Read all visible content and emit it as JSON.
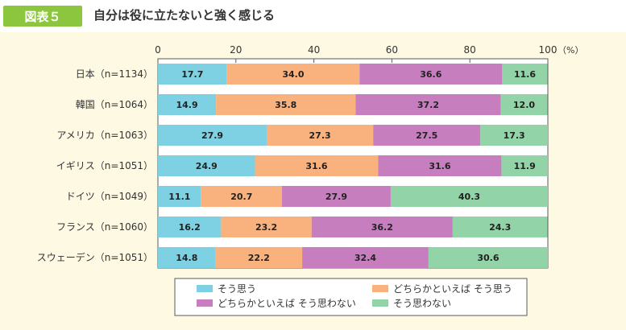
{
  "header": {
    "badge": "図表５",
    "title": "自分は役に立たないと強く感じる"
  },
  "chart_data": {
    "type": "bar",
    "orientation": "horizontal",
    "stacked": true,
    "title": "自分は役に立たないと強く感じる",
    "xlim": [
      0,
      100
    ],
    "x_ticks": [
      0,
      20,
      40,
      60,
      80,
      100
    ],
    "x_tick_labels": [
      "0",
      "20",
      "40",
      "60",
      "80",
      "100"
    ],
    "x_unit": "（%）",
    "grid": false,
    "legend_position": "bottom",
    "categories": [
      "日本（n=1134）",
      "韓国（n=1064）",
      "アメリカ（n=1063）",
      "イギリス（n=1051）",
      "ドイツ（n=1049）",
      "フランス（n=1060）",
      "スウェーデン（n=1051）"
    ],
    "series": [
      {
        "name": "そう思う",
        "color": "#7ed1e2",
        "values": [
          17.7,
          14.9,
          27.9,
          24.9,
          11.1,
          16.2,
          14.8
        ]
      },
      {
        "name": "どちらかといえば そう思う",
        "color": "#f9b27d",
        "values": [
          34.0,
          35.8,
          27.3,
          31.6,
          20.7,
          23.2,
          22.2
        ]
      },
      {
        "name": "どちらかといえば そう思わない",
        "color": "#c77ebf",
        "values": [
          36.6,
          37.2,
          27.5,
          31.6,
          27.9,
          36.2,
          32.4
        ]
      },
      {
        "name": "そう思わない",
        "color": "#93d3a8",
        "values": [
          11.6,
          12.0,
          17.3,
          11.9,
          40.3,
          24.3,
          30.6
        ]
      }
    ]
  }
}
